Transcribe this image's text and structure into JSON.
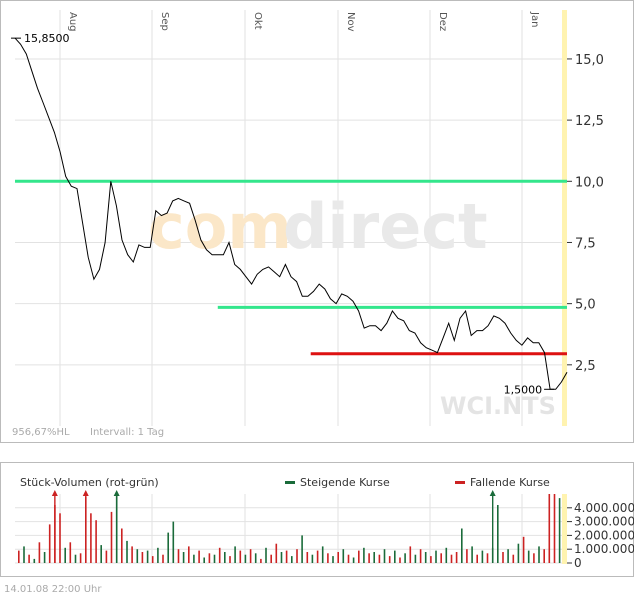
{
  "chart_data": [
    {
      "type": "line",
      "title": "",
      "xlabel": "",
      "ylabel": "",
      "months": [
        "Aug",
        "Sep",
        "Okt",
        "Nov",
        "Dez",
        "Jan"
      ],
      "ylim": [
        0,
        17
      ],
      "yticks": [
        "15,0",
        "12,5",
        "10,0",
        "7,5",
        "5,0",
        "2,5"
      ],
      "ytick_values": [
        15.0,
        12.5,
        10.0,
        7.5,
        5.0,
        2.5
      ],
      "grid": true,
      "x": [
        0,
        2,
        4,
        6,
        8,
        10,
        12,
        14,
        16,
        18,
        20,
        22,
        24,
        26,
        28,
        30,
        32,
        34,
        36,
        38,
        40,
        42,
        44,
        46,
        48,
        50,
        52,
        54,
        56,
        58,
        60,
        62,
        64,
        66,
        68,
        70,
        72,
        74,
        76,
        78,
        80,
        82,
        84,
        86,
        88,
        90,
        92,
        94,
        96,
        98,
        100,
        102,
        104,
        106,
        108,
        110,
        112,
        114,
        116,
        118,
        120,
        122,
        124,
        126,
        128,
        130,
        132,
        134,
        136,
        138,
        140,
        142,
        144,
        146,
        148,
        150,
        152,
        154,
        156,
        158,
        160,
        162,
        164,
        166,
        168,
        170,
        172,
        174,
        176,
        178,
        180,
        182,
        184,
        186,
        188,
        190,
        192,
        194,
        196
      ],
      "values": [
        15.85,
        15.6,
        15.2,
        14.5,
        13.8,
        13.2,
        12.6,
        12.0,
        11.2,
        10.2,
        9.8,
        9.7,
        8.3,
        6.9,
        6.0,
        6.4,
        7.5,
        10.0,
        9.0,
        7.6,
        7.0,
        6.7,
        7.4,
        7.3,
        7.3,
        8.8,
        8.6,
        8.7,
        9.2,
        9.3,
        9.2,
        9.1,
        8.4,
        7.6,
        7.2,
        7.0,
        7.0,
        7.0,
        7.5,
        6.6,
        6.4,
        6.1,
        5.8,
        6.2,
        6.4,
        6.5,
        6.3,
        6.1,
        6.6,
        6.1,
        5.9,
        5.3,
        5.3,
        5.5,
        5.8,
        5.6,
        5.2,
        5.0,
        5.4,
        5.3,
        5.1,
        4.7,
        4.0,
        4.1,
        4.1,
        3.9,
        4.2,
        4.7,
        4.4,
        4.3,
        3.9,
        3.8,
        3.4,
        3.2,
        3.1,
        3.0,
        3.6,
        4.2,
        3.5,
        4.4,
        4.7,
        3.7,
        3.9,
        3.9,
        4.1,
        4.5,
        4.4,
        4.2,
        3.8,
        3.5,
        3.3,
        3.6,
        3.4,
        3.4,
        3.0,
        1.5,
        1.5,
        1.8,
        2.2
      ],
      "annotations": [
        "15,8500",
        "1,5000"
      ],
      "support_lines": [
        {
          "value": 10.0,
          "color": "#33e68c",
          "from_x": 0,
          "to_x": 196
        },
        {
          "value": 4.85,
          "color": "#33e68c",
          "from_x": 72,
          "to_x": 196
        },
        {
          "value": 2.95,
          "color": "#dd1111",
          "from_x": 105,
          "to_x": 196
        }
      ],
      "line_color": "#000000"
    },
    {
      "type": "bar",
      "title": "Stück-Volumen (rot-grün)",
      "legend": [
        {
          "label": "Steigende Kurse",
          "color": "#1a6b3a"
        },
        {
          "label": "Fallende Kurse",
          "color": "#cc2222"
        }
      ],
      "ylim": [
        0,
        5000000
      ],
      "yticks": [
        "4.000.000",
        "3.000.000",
        "2.000.000",
        "1.000.000",
        "0"
      ],
      "ytick_values": [
        4000000,
        3000000,
        2000000,
        1000000,
        0
      ],
      "values": [
        900000,
        1200000,
        600000,
        300000,
        1500000,
        800000,
        2800000,
        4200000,
        3600000,
        1100000,
        1500000,
        600000,
        700000,
        4800000,
        3600000,
        3100000,
        1300000,
        900000,
        3700000,
        4900000,
        2500000,
        1600000,
        1200000,
        1000000,
        800000,
        900000,
        500000,
        1100000,
        600000,
        2200000,
        3000000,
        1000000,
        800000,
        1200000,
        600000,
        900000,
        400000,
        700000,
        600000,
        1100000,
        800000,
        500000,
        1200000,
        900000,
        600000,
        1000000,
        700000,
        300000,
        1100000,
        600000,
        1400000,
        800000,
        900000,
        500000,
        1000000,
        2000000,
        800000,
        600000,
        900000,
        1200000,
        700000,
        500000,
        800000,
        1000000,
        600000,
        400000,
        900000,
        1100000,
        700000,
        800000,
        600000,
        1000000,
        500000,
        900000,
        400000,
        700000,
        1200000,
        600000,
        1000000,
        800000,
        500000,
        900000,
        700000,
        1100000,
        600000,
        800000,
        2500000,
        1000000,
        1200000,
        600000,
        900000,
        700000,
        1100000,
        4200000,
        800000,
        1000000,
        600000,
        1400000,
        1900000,
        900000,
        700000,
        1200000,
        1000000,
        5200000,
        5000000,
        4700000
      ],
      "directions": [
        "d",
        "u",
        "d",
        "u",
        "d",
        "u",
        "d",
        "d",
        "d",
        "u",
        "d",
        "u",
        "d",
        "d",
        "d",
        "d",
        "u",
        "d",
        "d",
        "u",
        "d",
        "u",
        "d",
        "u",
        "d",
        "u",
        "d",
        "u",
        "d",
        "u",
        "u",
        "d",
        "u",
        "d",
        "u",
        "d",
        "u",
        "d",
        "u",
        "d",
        "u",
        "d",
        "u",
        "d",
        "u",
        "d",
        "u",
        "d",
        "u",
        "d",
        "d",
        "u",
        "d",
        "u",
        "d",
        "u",
        "d",
        "u",
        "d",
        "u",
        "d",
        "u",
        "d",
        "u",
        "d",
        "u",
        "d",
        "u",
        "d",
        "u",
        "d",
        "u",
        "d",
        "u",
        "d",
        "u",
        "d",
        "u",
        "d",
        "u",
        "d",
        "u",
        "d",
        "u",
        "d",
        "d",
        "u",
        "d",
        "u",
        "d",
        "u",
        "d",
        "u",
        "u",
        "d",
        "u",
        "d",
        "u",
        "d",
        "u",
        "d",
        "u",
        "d",
        "d",
        "d",
        "u"
      ],
      "clipped_markers": [
        {
          "index": 7,
          "color": "#cc2222"
        },
        {
          "index": 13,
          "color": "#cc2222"
        },
        {
          "index": 19,
          "color": "#1a6b3a"
        },
        {
          "index": 92,
          "color": "#1a6b3a"
        }
      ]
    }
  ],
  "status": {
    "perf_label": "956,67%HL",
    "interval_label": "Intervall: 1 Tag"
  },
  "watermark": {
    "brand_part1": "com",
    "brand_part2": "direct",
    "code": "WCI.NTS"
  },
  "footer": {
    "text": "14.01.08   22:00 Uhr"
  }
}
